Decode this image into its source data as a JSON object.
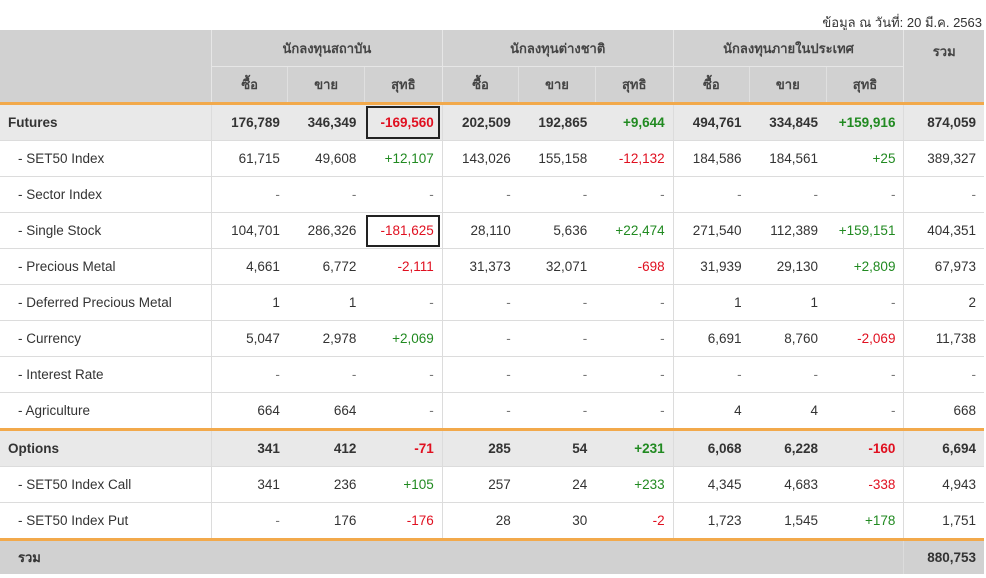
{
  "date_note": "ข้อมูล ณ วันที่: 20 มี.ค. 2563",
  "header": {
    "groups": [
      "นักลงทุนสถาบัน",
      "นักลงทุนต่างชาติ",
      "นักลงทุนภายในประเทศ"
    ],
    "total": "รวม",
    "sub": [
      "ซื้อ",
      "ขาย",
      "สุทธิ"
    ]
  },
  "colors": {
    "accent": "#f2a94b",
    "negative": "#e01020",
    "positive": "#218a21",
    "header_bg": "#d1d1d1"
  },
  "rows": [
    {
      "label": "Futures",
      "type": "section",
      "cells": [
        "176,789",
        "346,349",
        "-169,560",
        "202,509",
        "192,865",
        "+9,644",
        "494,761",
        "334,845",
        "+159,916",
        "874,059"
      ],
      "boxed": [
        2
      ]
    },
    {
      "label": "- SET50 Index",
      "type": "item",
      "cells": [
        "61,715",
        "49,608",
        "+12,107",
        "143,026",
        "155,158",
        "-12,132",
        "184,586",
        "184,561",
        "+25",
        "389,327"
      ]
    },
    {
      "label": "- Sector Index",
      "type": "item",
      "cells": [
        "-",
        "-",
        "-",
        "-",
        "-",
        "-",
        "-",
        "-",
        "-",
        "-"
      ]
    },
    {
      "label": "- Single Stock",
      "type": "item",
      "cells": [
        "104,701",
        "286,326",
        "-181,625",
        "28,110",
        "5,636",
        "+22,474",
        "271,540",
        "112,389",
        "+159,151",
        "404,351"
      ],
      "boxed": [
        2
      ]
    },
    {
      "label": "- Precious Metal",
      "type": "item",
      "cells": [
        "4,661",
        "6,772",
        "-2,111",
        "31,373",
        "32,071",
        "-698",
        "31,939",
        "29,130",
        "+2,809",
        "67,973"
      ]
    },
    {
      "label": "- Deferred Precious Metal",
      "type": "item",
      "cells": [
        "1",
        "1",
        "-",
        "-",
        "-",
        "-",
        "1",
        "1",
        "-",
        "2"
      ]
    },
    {
      "label": "- Currency",
      "type": "item",
      "cells": [
        "5,047",
        "2,978",
        "+2,069",
        "-",
        "-",
        "-",
        "6,691",
        "8,760",
        "-2,069",
        "11,738"
      ]
    },
    {
      "label": "- Interest Rate",
      "type": "item",
      "cells": [
        "-",
        "-",
        "-",
        "-",
        "-",
        "-",
        "-",
        "-",
        "-",
        "-"
      ]
    },
    {
      "label": "- Agriculture",
      "type": "item",
      "cells": [
        "664",
        "664",
        "-",
        "-",
        "-",
        "-",
        "4",
        "4",
        "-",
        "668"
      ]
    },
    {
      "label": "Options",
      "type": "section",
      "cells": [
        "341",
        "412",
        "-71",
        "285",
        "54",
        "+231",
        "6,068",
        "6,228",
        "-160",
        "6,694"
      ]
    },
    {
      "label": "- SET50 Index Call",
      "type": "item",
      "cells": [
        "341",
        "236",
        "+105",
        "257",
        "24",
        "+233",
        "4,345",
        "4,683",
        "-338",
        "4,943"
      ]
    },
    {
      "label": "- SET50 Index Put",
      "type": "item",
      "cells": [
        "-",
        "176",
        "-176",
        "28",
        "30",
        "-2",
        "1,723",
        "1,545",
        "+178",
        "1,751"
      ]
    }
  ],
  "total_row": {
    "label": "รวม",
    "value": "880,753"
  }
}
